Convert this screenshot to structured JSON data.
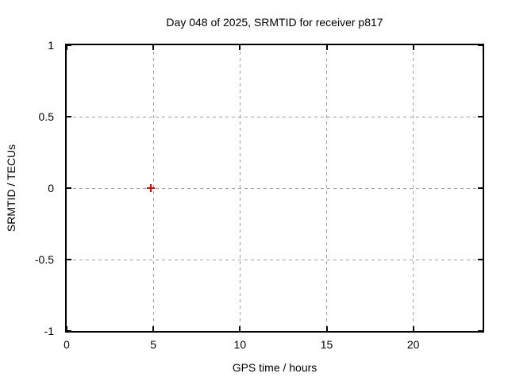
{
  "figure": {
    "background": "#ffffff",
    "axis_color": "#000000",
    "grid_color": "#a0a0a0"
  },
  "chart_data": {
    "type": "scatter",
    "title": "Day 048 of 2025, SRMTID for receiver p817",
    "xlabel": "GPS time / hours",
    "ylabel": "SRMTID / TECUs",
    "xlim": [
      0,
      24
    ],
    "ylim": [
      -1,
      1
    ],
    "x_ticks": [
      0,
      5,
      10,
      15,
      20
    ],
    "x_tick_labels": [
      "0",
      "5",
      "10",
      "15",
      "20"
    ],
    "y_ticks": [
      -1,
      -0.5,
      0,
      0.5,
      1
    ],
    "y_tick_labels": [
      "-1",
      "-0.5",
      "0",
      "0.5",
      "1"
    ],
    "grid": true,
    "legend": "none",
    "series": [
      {
        "name": "SRMTID",
        "marker": "plus",
        "color": "#e60000",
        "points": [
          {
            "x": 4.85,
            "y": 0.0
          }
        ]
      }
    ]
  }
}
